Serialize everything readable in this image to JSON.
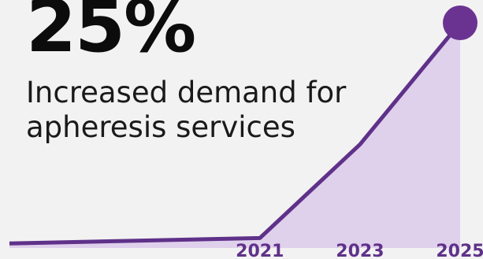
{
  "headline": {
    "value": "25%",
    "subtitle_lines": [
      "Increased demand for",
      "apheresis services"
    ]
  },
  "colors": {
    "background": "#f2f2f2",
    "line": "#5f3189",
    "area": "#dfd0ec",
    "marker": "#6a3391",
    "tick_label": "#5f3189",
    "headline": "#0c0c0c"
  },
  "chart_data": {
    "type": "area",
    "x": [
      2016,
      2021,
      2023,
      2025
    ],
    "values": [
      0.5,
      1.1,
      11.5,
      25
    ],
    "ticks": [
      "2021",
      "2023",
      "2025"
    ],
    "tick_values": [
      2021,
      2023,
      2025
    ],
    "xlim": [
      2016,
      2025
    ],
    "ylim": [
      0,
      25
    ],
    "yunit": "%",
    "end_marker": true,
    "grid": false,
    "title": "",
    "xlabel": "",
    "ylabel": ""
  }
}
